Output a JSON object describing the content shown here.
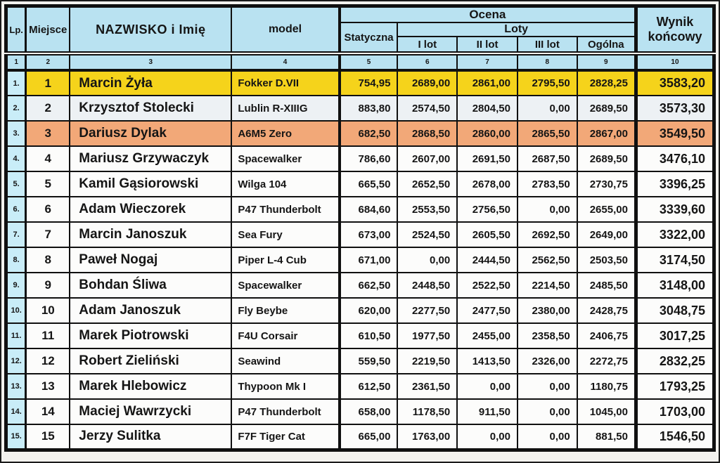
{
  "table": {
    "headers": {
      "lp": "Lp.",
      "miejsce": "Miejsce",
      "name": "NAZWISKO i Imię",
      "model": "model",
      "ocena": "Ocena",
      "statyczna": "Statyczna",
      "loty": "Loty",
      "lot1": "I lot",
      "lot2": "II lot",
      "lot3": "III lot",
      "ogolna": "Ogólna",
      "wynik": "Wynik końcowy"
    },
    "column_numbers": [
      "1",
      "2",
      "3",
      "4",
      "5",
      "6",
      "7",
      "8",
      "9",
      "10"
    ],
    "rows": [
      {
        "lp": "1.",
        "miejsce": "1",
        "name": "Marcin Żyła",
        "model": "Fokker D.VII",
        "statyczna": "754,95",
        "lot1": "2689,00",
        "lot2": "2861,00",
        "lot3": "2795,50",
        "ogolna": "2828,25",
        "wynik": "3583,20",
        "highlight": "gold"
      },
      {
        "lp": "2.",
        "miejsce": "2",
        "name": "Krzysztof Stolecki",
        "model": "Lublin R-XIIIG",
        "statyczna": "883,80",
        "lot1": "2574,50",
        "lot2": "2804,50",
        "lot3": "0,00",
        "ogolna": "2689,50",
        "wynik": "3573,30",
        "highlight": "silver"
      },
      {
        "lp": "3.",
        "miejsce": "3",
        "name": "Dariusz Dylak",
        "model": "A6M5 Zero",
        "statyczna": "682,50",
        "lot1": "2868,50",
        "lot2": "2860,00",
        "lot3": "2865,50",
        "ogolna": "2867,00",
        "wynik": "3549,50",
        "highlight": "bronze"
      },
      {
        "lp": "4.",
        "miejsce": "4",
        "name": "Mariusz Grzywaczyk",
        "model": "Spacewalker",
        "statyczna": "786,60",
        "lot1": "2607,00",
        "lot2": "2691,50",
        "lot3": "2687,50",
        "ogolna": "2689,50",
        "wynik": "3476,10",
        "highlight": "none"
      },
      {
        "lp": "5.",
        "miejsce": "5",
        "name": "Kamil Gąsiorowski",
        "model": "Wilga 104",
        "statyczna": "665,50",
        "lot1": "2652,50",
        "lot2": "2678,00",
        "lot3": "2783,50",
        "ogolna": "2730,75",
        "wynik": "3396,25",
        "highlight": "none"
      },
      {
        "lp": "6.",
        "miejsce": "6",
        "name": "Adam Wieczorek",
        "model": "P47 Thunderbolt",
        "statyczna": "684,60",
        "lot1": "2553,50",
        "lot2": "2756,50",
        "lot3": "0,00",
        "ogolna": "2655,00",
        "wynik": "3339,60",
        "highlight": "none"
      },
      {
        "lp": "7.",
        "miejsce": "7",
        "name": "Marcin Janoszuk",
        "model": "Sea Fury",
        "statyczna": "673,00",
        "lot1": "2524,50",
        "lot2": "2605,50",
        "lot3": "2692,50",
        "ogolna": "2649,00",
        "wynik": "3322,00",
        "highlight": "none"
      },
      {
        "lp": "8.",
        "miejsce": "8",
        "name": "Paweł Nogaj",
        "model": "Piper L-4 Cub",
        "statyczna": "671,00",
        "lot1": "0,00",
        "lot2": "2444,50",
        "lot3": "2562,50",
        "ogolna": "2503,50",
        "wynik": "3174,50",
        "highlight": "none"
      },
      {
        "lp": "9.",
        "miejsce": "9",
        "name": "Bohdan Śliwa",
        "model": "Spacewalker",
        "statyczna": "662,50",
        "lot1": "2448,50",
        "lot2": "2522,50",
        "lot3": "2214,50",
        "ogolna": "2485,50",
        "wynik": "3148,00",
        "highlight": "none"
      },
      {
        "lp": "10.",
        "miejsce": "10",
        "name": "Adam Janoszuk",
        "model": "Fly Beybe",
        "statyczna": "620,00",
        "lot1": "2277,50",
        "lot2": "2477,50",
        "lot3": "2380,00",
        "ogolna": "2428,75",
        "wynik": "3048,75",
        "highlight": "none"
      },
      {
        "lp": "11.",
        "miejsce": "11",
        "name": "Marek Piotrowski",
        "model": "F4U Corsair",
        "statyczna": "610,50",
        "lot1": "1977,50",
        "lot2": "2455,00",
        "lot3": "2358,50",
        "ogolna": "2406,75",
        "wynik": "3017,25",
        "highlight": "none"
      },
      {
        "lp": "12.",
        "miejsce": "12",
        "name": "Robert Zieliński",
        "model": "Seawind",
        "statyczna": "559,50",
        "lot1": "2219,50",
        "lot2": "1413,50",
        "lot3": "2326,00",
        "ogolna": "2272,75",
        "wynik": "2832,25",
        "highlight": "none"
      },
      {
        "lp": "13.",
        "miejsce": "13",
        "name": "Marek Hlebowicz",
        "model": "Thypoon Mk I",
        "statyczna": "612,50",
        "lot1": "2361,50",
        "lot2": "0,00",
        "lot3": "0,00",
        "ogolna": "1180,75",
        "wynik": "1793,25",
        "highlight": "none"
      },
      {
        "lp": "14.",
        "miejsce": "14",
        "name": "Maciej Wawrzycki",
        "model": "P47 Thunderbolt",
        "statyczna": "658,00",
        "lot1": "1178,50",
        "lot2": "911,50",
        "lot3": "0,00",
        "ogolna": "1045,00",
        "wynik": "1703,00",
        "highlight": "none"
      },
      {
        "lp": "15.",
        "miejsce": "15",
        "name": "Jerzy Sulitka",
        "model": "F7F Tiger Cat",
        "statyczna": "665,00",
        "lot1": "1763,00",
        "lot2": "0,00",
        "lot3": "0,00",
        "ogolna": "881,50",
        "wynik": "1546,50",
        "highlight": "none"
      }
    ],
    "colors": {
      "header_bg": "#b9e2f1",
      "lp_col_bg": "#c9edf8",
      "row_default_bg": "#fcfcfb",
      "gold": "#f5d31b",
      "silver": "#edf1f4",
      "bronze": "#f2a878",
      "border": "#101010"
    }
  }
}
